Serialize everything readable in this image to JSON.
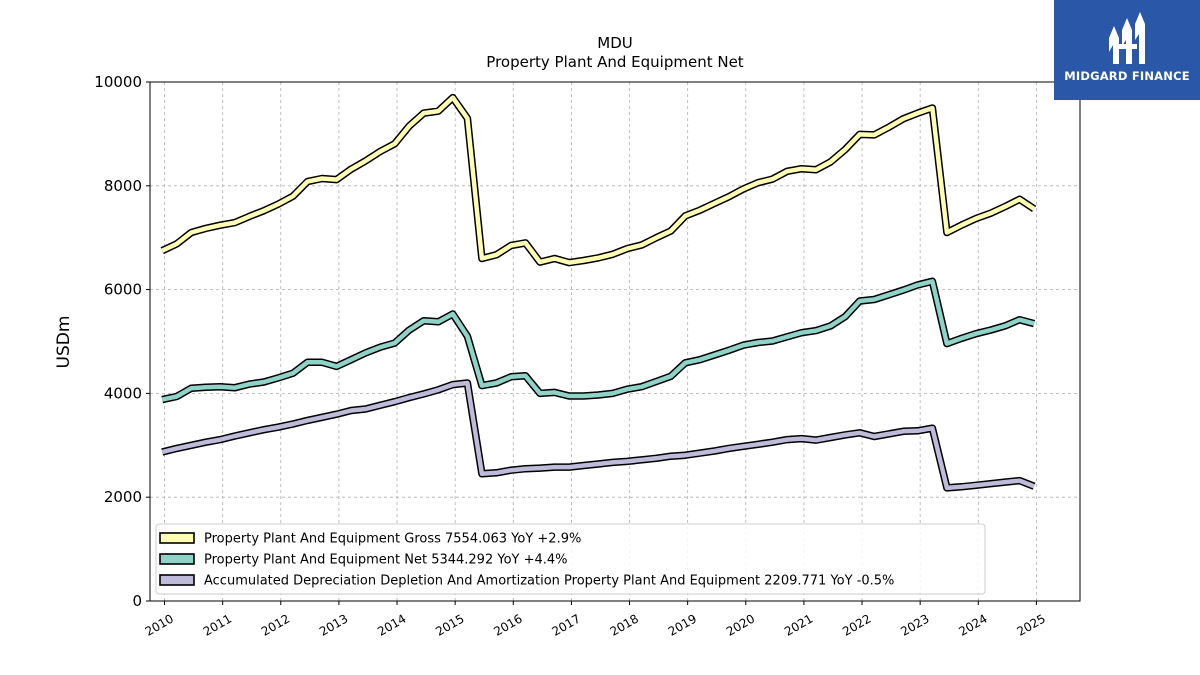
{
  "logo": {
    "brand": "MIDGARD FINANCE",
    "icon": "midgard-logo-icon",
    "background": "#2a57a8"
  },
  "chart_data": {
    "type": "line",
    "title": "MDU",
    "subtitle": "Property Plant And Equipment Net",
    "xlabel": "",
    "ylabel": "USDm",
    "ylim": [
      0,
      10000
    ],
    "xlim": [
      2009.75,
      2025.75
    ],
    "yticks": [
      "0",
      "2000",
      "4000",
      "6000",
      "8000",
      "10000"
    ],
    "xticks": [
      "2010",
      "2011",
      "2012",
      "2013",
      "2014",
      "2015",
      "2016",
      "2017",
      "2018",
      "2019",
      "2020",
      "2021",
      "2022",
      "2023",
      "2024",
      "2025"
    ],
    "grid": true,
    "legend_position": "bottom-left",
    "x": [
      2009.96,
      2010.21,
      2010.46,
      2010.71,
      2010.96,
      2011.21,
      2011.46,
      2011.71,
      2011.96,
      2012.21,
      2012.46,
      2012.71,
      2012.96,
      2013.21,
      2013.46,
      2013.71,
      2013.96,
      2014.21,
      2014.46,
      2014.71,
      2014.96,
      2015.21,
      2015.46,
      2015.71,
      2015.96,
      2016.21,
      2016.46,
      2016.71,
      2016.96,
      2017.21,
      2017.46,
      2017.71,
      2017.96,
      2018.21,
      2018.46,
      2018.71,
      2018.96,
      2019.21,
      2019.46,
      2019.71,
      2019.96,
      2020.21,
      2020.46,
      2020.71,
      2020.96,
      2021.21,
      2021.46,
      2021.71,
      2021.96,
      2022.21,
      2022.46,
      2022.71,
      2022.96,
      2023.21,
      2023.46,
      2023.71,
      2023.96,
      2024.21,
      2024.46,
      2024.71,
      2024.96
    ],
    "series": [
      {
        "name": "Property Plant And Equipment Gross",
        "legend_label": "Property Plant And Equipment Gross  7554.063 YoY +2.9%",
        "color": "#ffffb3",
        "values": [
          6750,
          6880,
          7100,
          7180,
          7240,
          7290,
          7410,
          7520,
          7650,
          7800,
          8080,
          8140,
          8120,
          8320,
          8480,
          8660,
          8810,
          9150,
          9400,
          9440,
          9700,
          9300,
          6600,
          6670,
          6850,
          6900,
          6530,
          6600,
          6520,
          6560,
          6610,
          6680,
          6790,
          6860,
          7000,
          7130,
          7420,
          7530,
          7660,
          7790,
          7940,
          8060,
          8130,
          8280,
          8330,
          8310,
          8460,
          8700,
          8990,
          8980,
          9130,
          9290,
          9400,
          9500,
          7100,
          7240,
          7370,
          7470,
          7600,
          7740,
          7554
        ]
      },
      {
        "name": "Property Plant And Equipment Net",
        "legend_label": "Property Plant And Equipment Net  5344.292 YoY +4.4%",
        "color": "#8dd3c7",
        "values": [
          3880,
          3940,
          4100,
          4120,
          4130,
          4110,
          4180,
          4220,
          4300,
          4390,
          4600,
          4600,
          4520,
          4650,
          4780,
          4890,
          4970,
          5220,
          5400,
          5380,
          5530,
          5100,
          4150,
          4200,
          4320,
          4340,
          4000,
          4020,
          3950,
          3950,
          3970,
          4000,
          4080,
          4130,
          4230,
          4330,
          4590,
          4650,
          4740,
          4830,
          4930,
          4980,
          5010,
          5090,
          5170,
          5210,
          5300,
          5480,
          5780,
          5810,
          5900,
          5990,
          6090,
          6160,
          4960,
          5060,
          5150,
          5220,
          5300,
          5420,
          5344
        ]
      },
      {
        "name": "Accumulated Depreciation Depletion And Amortization Property Plant And Equipment",
        "legend_label": "Accumulated Depreciation Depletion And Amortization Property Plant And Equipment  2209.771 YoY -0.5%",
        "color": "#bebada",
        "values": [
          2870,
          2940,
          3000,
          3060,
          3110,
          3180,
          3240,
          3300,
          3350,
          3410,
          3480,
          3540,
          3600,
          3670,
          3700,
          3770,
          3840,
          3920,
          3990,
          4070,
          4170,
          4200,
          2450,
          2470,
          2520,
          2550,
          2560,
          2580,
          2580,
          2610,
          2640,
          2670,
          2690,
          2720,
          2750,
          2790,
          2810,
          2850,
          2890,
          2940,
          2980,
          3020,
          3060,
          3110,
          3130,
          3100,
          3150,
          3200,
          3240,
          3170,
          3220,
          3270,
          3280,
          3330,
          2180,
          2200,
          2230,
          2260,
          2290,
          2320,
          2210
        ]
      }
    ]
  }
}
